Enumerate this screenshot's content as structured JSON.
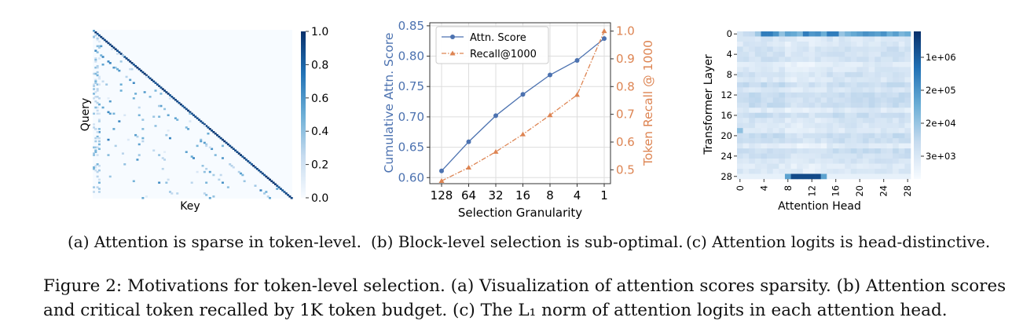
{
  "figure": {
    "caption_lines": [
      "Figure 2: Motivations for token-level selection. (a) Visualization of attention scores sparsity. (b) Attention scores",
      "and critical token recalled by 1K token budget. (c) The L₁ norm of attention logits in each attention head."
    ]
  },
  "subcaptions": {
    "a": "(a) Attention is sparse in token-level.",
    "b": "(b) Block-level selection is sub-optimal.",
    "c": "(c) Attention logits is head-distinctive."
  },
  "colors": {
    "blue": "#4c72b0",
    "orange": "#dd8452",
    "cmap_low": "#f7fbff",
    "cmap_high": "#08306b"
  },
  "chart_data": [
    {
      "type": "heatmap",
      "xlabel": "Key",
      "ylabel": "Query",
      "colorbar": {
        "ticks": [
          "0.0",
          "0.2",
          "0.4",
          "0.6",
          "0.8",
          "1.0"
        ],
        "range": [
          0,
          1
        ],
        "colormap": "Blues"
      },
      "pattern": "sparse attention map: strong main diagonal plus faint diagonal and vertical stripes"
    },
    {
      "type": "line",
      "xlabel": "Selection Granularity",
      "categories": [
        "128",
        "64",
        "32",
        "16",
        "8",
        "4",
        "1"
      ],
      "y_left": {
        "label": "Cumulative Attn. Score",
        "lim": [
          0.59,
          0.855
        ],
        "ticks": [
          "0.60",
          "0.65",
          "0.70",
          "0.75",
          "0.80",
          "0.85"
        ]
      },
      "y_right": {
        "label": "Token Recall @ 1000",
        "lim": [
          0.45,
          1.03
        ],
        "ticks": [
          "0.5",
          "0.6",
          "0.7",
          "0.8",
          "0.9",
          "1.0"
        ]
      },
      "grid": true,
      "legend": "top-left",
      "series": [
        {
          "name": "Attn. Score",
          "axis": "left",
          "marker": "circle",
          "linestyle": "solid",
          "color": "#4c72b0",
          "values": [
            0.611,
            0.659,
            0.702,
            0.737,
            0.769,
            0.793,
            0.829
          ]
        },
        {
          "name": "Recall@1000",
          "axis": "right",
          "marker": "triangle",
          "linestyle": "dashdot",
          "color": "#dd8452",
          "values": [
            0.46,
            0.508,
            0.565,
            0.628,
            0.697,
            0.77,
            1.0
          ]
        }
      ]
    },
    {
      "type": "heatmap",
      "xlabel": "Attention Head",
      "ylabel": "Transformer Layer",
      "xticks": [
        "0",
        "4",
        "8",
        "12",
        "16",
        "20",
        "24",
        "28"
      ],
      "yticks": [
        "0",
        "4",
        "8",
        "12",
        "16",
        "20",
        "24",
        "28"
      ],
      "colorbar": {
        "ticks": [
          "1e+06",
          "2e+05",
          "2e+04",
          "3e+03"
        ],
        "scale": "log",
        "colormap": "Blues"
      }
    }
  ]
}
